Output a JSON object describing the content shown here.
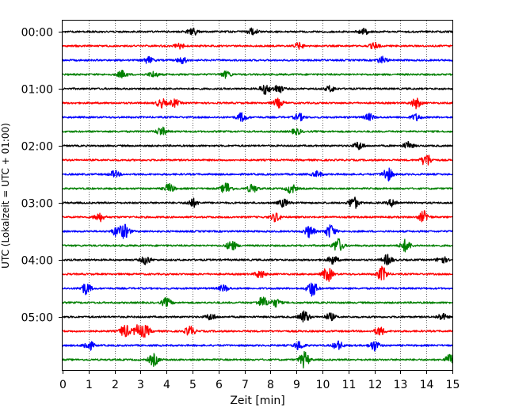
{
  "chart_data": {
    "type": "line",
    "title": "",
    "xlabel": "Zeit  [min]",
    "ylabel": "UTC (Lokalzeit = UTC + 01:00)",
    "xlim": [
      0,
      15
    ],
    "x_ticks": [
      "0",
      "1",
      "2",
      "3",
      "4",
      "5",
      "6",
      "7",
      "8",
      "9",
      "10",
      "11",
      "12",
      "13",
      "14",
      "15"
    ],
    "y_ticks": [
      "00:00",
      "01:00",
      "02:00",
      "03:00",
      "04:00",
      "05:00"
    ],
    "grid": "vertical dotted lines at every minute",
    "trace_colors": [
      "#000000",
      "#ff0000",
      "#0000ff",
      "#008000"
    ],
    "rows": [
      {
        "start": "00:00",
        "color": "#000000",
        "bursts": [
          [
            5.0,
            0.55
          ],
          [
            7.3,
            0.5
          ],
          [
            11.6,
            0.4
          ]
        ]
      },
      {
        "start": "00:15",
        "color": "#ff0000",
        "bursts": [
          [
            4.5,
            0.4
          ],
          [
            9.1,
            0.4
          ],
          [
            12.0,
            0.4
          ]
        ]
      },
      {
        "start": "00:30",
        "color": "#0000ff",
        "bursts": [
          [
            3.3,
            0.45
          ],
          [
            4.6,
            0.45
          ],
          [
            12.3,
            0.45
          ]
        ]
      },
      {
        "start": "00:45",
        "color": "#008000",
        "bursts": [
          [
            2.3,
            0.5
          ],
          [
            3.5,
            0.4
          ],
          [
            6.3,
            0.45
          ]
        ]
      },
      {
        "start": "01:00",
        "color": "#000000",
        "bursts": [
          [
            7.8,
            0.7
          ],
          [
            8.3,
            0.6
          ],
          [
            10.3,
            0.4
          ]
        ]
      },
      {
        "start": "01:15",
        "color": "#ff0000",
        "bursts": [
          [
            3.8,
            0.6
          ],
          [
            4.3,
            0.5
          ],
          [
            8.3,
            0.6
          ],
          [
            13.6,
            0.7
          ]
        ]
      },
      {
        "start": "01:30",
        "color": "#0000ff",
        "bursts": [
          [
            6.9,
            0.6
          ],
          [
            9.1,
            0.5
          ],
          [
            11.8,
            0.45
          ],
          [
            13.6,
            0.45
          ]
        ]
      },
      {
        "start": "01:45",
        "color": "#008000",
        "bursts": [
          [
            3.8,
            0.6
          ],
          [
            9.0,
            0.4
          ]
        ]
      },
      {
        "start": "02:00",
        "color": "#000000",
        "bursts": [
          [
            11.4,
            0.55
          ],
          [
            13.3,
            0.5
          ]
        ]
      },
      {
        "start": "02:15",
        "color": "#ff0000",
        "bursts": [
          [
            14.0,
            0.9
          ]
        ]
      },
      {
        "start": "02:30",
        "color": "#0000ff",
        "bursts": [
          [
            2.0,
            0.45
          ],
          [
            12.5,
            0.95
          ],
          [
            9.8,
            0.4
          ]
        ]
      },
      {
        "start": "02:45",
        "color": "#008000",
        "bursts": [
          [
            4.1,
            0.65
          ],
          [
            6.3,
            0.85
          ],
          [
            7.3,
            0.6
          ],
          [
            8.8,
            0.65
          ]
        ]
      },
      {
        "start": "03:00",
        "color": "#000000",
        "bursts": [
          [
            5.0,
            0.6
          ],
          [
            8.5,
            0.55
          ],
          [
            11.2,
            0.85
          ],
          [
            12.7,
            0.5
          ]
        ]
      },
      {
        "start": "03:15",
        "color": "#ff0000",
        "bursts": [
          [
            1.4,
            0.6
          ],
          [
            8.2,
            0.6
          ],
          [
            13.9,
            0.8
          ]
        ]
      },
      {
        "start": "03:30",
        "color": "#0000ff",
        "bursts": [
          [
            2.1,
            0.7
          ],
          [
            2.4,
            0.9
          ],
          [
            9.5,
            0.8
          ],
          [
            10.3,
            0.95
          ]
        ]
      },
      {
        "start": "03:45",
        "color": "#008000",
        "bursts": [
          [
            6.5,
            0.7
          ],
          [
            10.6,
            1.0
          ],
          [
            13.2,
            0.85
          ]
        ]
      },
      {
        "start": "04:00",
        "color": "#000000",
        "bursts": [
          [
            3.2,
            0.6
          ],
          [
            10.4,
            0.6
          ],
          [
            12.5,
            0.7
          ],
          [
            14.6,
            0.5
          ]
        ]
      },
      {
        "start": "04:15",
        "color": "#ff0000",
        "bursts": [
          [
            7.6,
            0.55
          ],
          [
            10.2,
            1.0
          ],
          [
            12.3,
            1.0
          ]
        ]
      },
      {
        "start": "04:30",
        "color": "#0000ff",
        "bursts": [
          [
            0.9,
            0.8
          ],
          [
            9.6,
            1.1
          ],
          [
            6.2,
            0.45
          ]
        ]
      },
      {
        "start": "04:45",
        "color": "#008000",
        "bursts": [
          [
            4.0,
            0.6
          ],
          [
            7.7,
            0.8
          ],
          [
            8.2,
            0.55
          ]
        ]
      },
      {
        "start": "05:00",
        "color": "#000000",
        "bursts": [
          [
            5.7,
            0.45
          ],
          [
            9.3,
            0.85
          ],
          [
            10.3,
            0.5
          ],
          [
            14.6,
            0.45
          ]
        ]
      },
      {
        "start": "05:15",
        "color": "#ff0000",
        "bursts": [
          [
            2.4,
            0.9
          ],
          [
            2.9,
            0.8
          ],
          [
            3.2,
            0.7
          ],
          [
            4.9,
            0.7
          ],
          [
            12.2,
            0.6
          ]
        ]
      },
      {
        "start": "05:30",
        "color": "#0000ff",
        "bursts": [
          [
            1.0,
            0.7
          ],
          [
            9.1,
            0.6
          ],
          [
            10.6,
            0.6
          ],
          [
            12.0,
            0.7
          ]
        ]
      },
      {
        "start": "05:45",
        "color": "#008000",
        "bursts": [
          [
            3.5,
            0.8
          ],
          [
            9.3,
            1.1
          ],
          [
            14.9,
            0.7
          ]
        ]
      }
    ]
  }
}
